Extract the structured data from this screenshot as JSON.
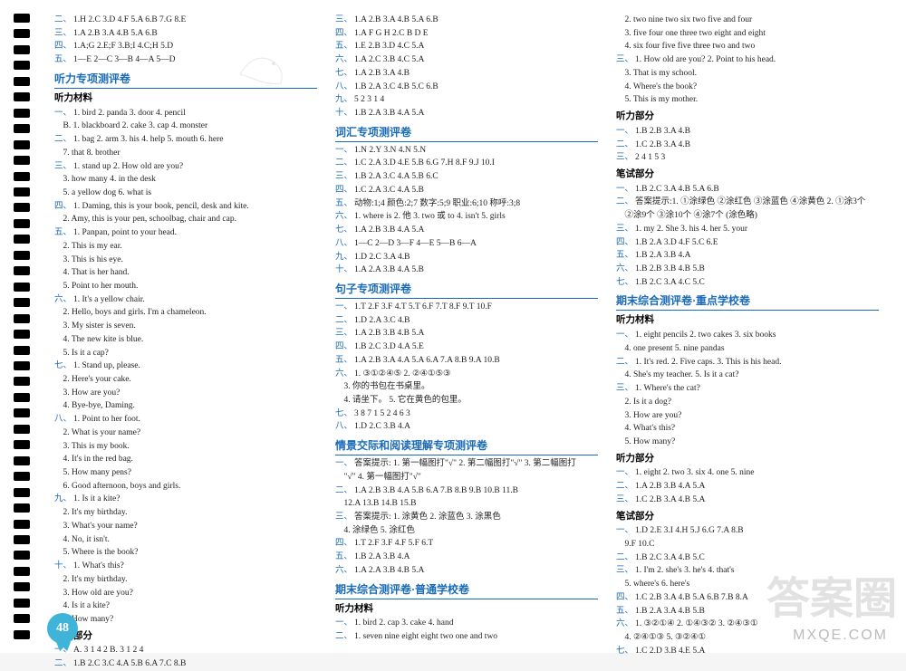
{
  "page_number": "48",
  "watermark_small": "MXQE.COM",
  "watermark_big": "答案圈",
  "columns": [
    {
      "groups": [
        {
          "type": "plain",
          "lines": [
            {
              "n": "二、",
              "t": "1.H  2.C  3.D  4.F  5.A  6.B  7.G  8.E"
            },
            {
              "n": "三、",
              "t": "1.A  2.B  3.A  4.B  5.A  6.B"
            },
            {
              "n": "四、",
              "t": "1.A;G  2.E;F  3.B;I  4.C;H  5.D"
            },
            {
              "n": "五、",
              "t": "1—E  2—C  3—B  4—A  5—D"
            }
          ]
        },
        {
          "type": "title",
          "text": "听力专项测评卷"
        },
        {
          "type": "sub",
          "text": "听力材料"
        },
        {
          "type": "plain",
          "lines": [
            {
              "n": "一、",
              "t": "1. bird  2. panda  3. door  4. pencil"
            },
            {
              "n": "",
              "t": "B. 1. blackboard  2. cake  3. cap  4. monster"
            },
            {
              "n": "二、",
              "t": "1. bag  2. arm  3. his  4. help  5. mouth  6. here"
            },
            {
              "n": "",
              "t": "7. that  8. brother"
            },
            {
              "n": "三、",
              "t": "1. stand up  2. How old are you?"
            },
            {
              "n": "",
              "t": "3. how many   4. in the desk"
            },
            {
              "n": "",
              "t": "5. a yellow dog   6. what is"
            },
            {
              "n": "四、",
              "t": "1. Daming, this is your book, pencil, desk and kite."
            },
            {
              "n": "",
              "t": "2. Amy, this is your pen, schoolbag, chair and cap."
            },
            {
              "n": "五、",
              "t": "1. Panpan, point to your head."
            },
            {
              "n": "",
              "t": "2. This is my ear."
            },
            {
              "n": "",
              "t": "3. This is his eye."
            },
            {
              "n": "",
              "t": "4. That is her hand."
            },
            {
              "n": "",
              "t": "5. Point to her mouth."
            },
            {
              "n": "六、",
              "t": "1. It's a yellow chair."
            },
            {
              "n": "",
              "t": "2. Hello, boys and girls.  I'm a chameleon."
            },
            {
              "n": "",
              "t": "3. My sister is seven."
            },
            {
              "n": "",
              "t": "4. The new kite is blue."
            },
            {
              "n": "",
              "t": "5. Is it a cap?"
            },
            {
              "n": "七、",
              "t": "1. Stand up, please."
            },
            {
              "n": "",
              "t": "2. Here's your cake."
            },
            {
              "n": "",
              "t": "3. How are you?"
            },
            {
              "n": "",
              "t": "4. Bye-bye, Daming."
            },
            {
              "n": "八、",
              "t": "1. Point to her foot."
            },
            {
              "n": "",
              "t": "2. What is your name?"
            },
            {
              "n": "",
              "t": "3. This is my book."
            },
            {
              "n": "",
              "t": "4. It's in the red bag."
            },
            {
              "n": "",
              "t": "5. How many pens?"
            },
            {
              "n": "",
              "t": "6. Good afternoon, boys and girls."
            },
            {
              "n": "九、",
              "t": "1. Is it a kite?"
            },
            {
              "n": "",
              "t": "2. It's my birthday."
            },
            {
              "n": "",
              "t": "3. What's your name?"
            },
            {
              "n": "",
              "t": "4. No, it isn't."
            },
            {
              "n": "",
              "t": "5. Where is the book?"
            },
            {
              "n": "十、",
              "t": "1. What's this?"
            },
            {
              "n": "",
              "t": "2. It's my birthday."
            },
            {
              "n": "",
              "t": "3. How old are you?"
            },
            {
              "n": "",
              "t": "4. Is it a kite?"
            },
            {
              "n": "",
              "t": "5. How many?"
            }
          ]
        },
        {
          "type": "sub",
          "text": "听力部分"
        },
        {
          "type": "plain",
          "lines": [
            {
              "n": "一、",
              "t": "A. 3  1  4  2  B. 3  1  2  4"
            },
            {
              "n": "二、",
              "t": "1.B  2.C  3.C  4.A  5.B  6.A  7.C  8.B"
            }
          ]
        }
      ]
    },
    {
      "groups": [
        {
          "type": "plain",
          "lines": [
            {
              "n": "三、",
              "t": "1.A  2.B  3.A  4.B  5.A  6.B"
            },
            {
              "n": "四、",
              "t": "1.A  F  G  H  2.C  B  D  E"
            },
            {
              "n": "五、",
              "t": "1.E  2.B  3.D  4.C  5.A"
            },
            {
              "n": "六、",
              "t": "1.A  2.C  3.B  4.C  5.A"
            },
            {
              "n": "七、",
              "t": "1.A  2.B  3.A  4.B"
            },
            {
              "n": "八、",
              "t": "1.B  2.A  3.C  4.B  5.C  6.B"
            },
            {
              "n": "九、",
              "t": "5  2  3  1  4"
            },
            {
              "n": "十、",
              "t": "1.B  2.A  3.B  4.A  5.A"
            }
          ]
        },
        {
          "type": "title",
          "text": "词汇专项测评卷"
        },
        {
          "type": "plain",
          "lines": [
            {
              "n": "一、",
              "t": "1.N  2.Y  3.N  4.N  5.N"
            },
            {
              "n": "二、",
              "t": "1.C  2.A  3.D  4.E  5.B  6.G  7.H  8.F  9.J  10.I"
            },
            {
              "n": "三、",
              "t": "1.B  2.A  3.C  4.A  5.B  6.C"
            },
            {
              "n": "四、",
              "t": "1.C  2.A  3.C  4.A  5.B"
            },
            {
              "n": "五、",
              "t": "动物:1;4  颜色:2;7  数字:5;9  职业:6;10  称呼:3;8"
            },
            {
              "n": "六、",
              "t": "1. where is   2. 他  3. two 或 to   4. isn't   5. girls"
            },
            {
              "n": "七、",
              "t": "1.A  2.B  3.B  4.A  5.A"
            },
            {
              "n": "八、",
              "t": "1—C  2—D  3—F  4—E  5—B  6—A"
            },
            {
              "n": "九、",
              "t": "1.D  2.C  3.A  4.B"
            },
            {
              "n": "十、",
              "t": "1.A  2.A  3.B  4.A  5.B"
            }
          ]
        },
        {
          "type": "title",
          "text": "句子专项测评卷"
        },
        {
          "type": "plain",
          "lines": [
            {
              "n": "一、",
              "t": "1.T  2.F  3.F  4.T  5.T  6.F  7.T  8.F  9.T  10.F"
            },
            {
              "n": "二、",
              "t": "1.D  2.A  3.C  4.B"
            },
            {
              "n": "三、",
              "t": "1.A  2.B  3.B  4.B  5.A"
            },
            {
              "n": "四、",
              "t": "1.B  2.C  3.D  4.A  5.E"
            },
            {
              "n": "五、",
              "t": "1.A  2.B  3.A  4.A  5.A  6.A  7.A  8.B  9.A  10.B"
            },
            {
              "n": "六、",
              "t": "1. ③①②④⑤   2. ②④①⑤③"
            },
            {
              "n": "",
              "t": "3. 你的书包在书桌里。"
            },
            {
              "n": "",
              "t": "4. 请坐下。   5. 它在黄色的包里。"
            },
            {
              "n": "七、",
              "t": "3  8  7  1  5  2  4  6  3"
            },
            {
              "n": "八、",
              "t": "1.D  2.C  3.B  4.A"
            }
          ]
        },
        {
          "type": "title",
          "text": "情景交际和阅读理解专项测评卷"
        },
        {
          "type": "plain",
          "lines": [
            {
              "n": "一、",
              "t": "答案提示: 1. 第一幅图打\"√\"  2. 第二幅图打\"√\"  3. 第二幅图打"
            },
            {
              "n": "",
              "t": "\"√\"  4. 第一幅图打\"√\""
            },
            {
              "n": "二、",
              "t": "1.A  2.B  3.B  4.A  5.B  6.A  7.B  8.B  9.B  10.B  11.B"
            },
            {
              "n": "",
              "t": "12.A  13.B  14.B  15.B"
            },
            {
              "n": "三、",
              "t": "答案提示: 1. 涂黄色  2. 涂蓝色  3. 涂黑色"
            },
            {
              "n": "",
              "t": "4. 涂绿色   5. 涂红色"
            },
            {
              "n": "四、",
              "t": "1.T  2.F  3.F  4.F  5.F  6.T"
            },
            {
              "n": "五、",
              "t": "1.B  2.A  3.B  4.A"
            },
            {
              "n": "六、",
              "t": "1.A  2.A  3.B  4.B  5.A"
            }
          ]
        },
        {
          "type": "title",
          "text": "期末综合测评卷·普通学校卷"
        },
        {
          "type": "sub",
          "text": "听力材料"
        },
        {
          "type": "plain",
          "lines": [
            {
              "n": "一、",
              "t": "1. bird  2. cap  3. cake  4. hand"
            },
            {
              "n": "二、",
              "t": "1. seven nine eight eight two one and two"
            }
          ]
        }
      ]
    },
    {
      "groups": [
        {
          "type": "plain",
          "lines": [
            {
              "n": "",
              "t": "2. two nine two six two five and four"
            },
            {
              "n": "",
              "t": "3. five four one three two eight and eight"
            },
            {
              "n": "",
              "t": "4. six four five five three two and two"
            },
            {
              "n": "三、",
              "t": "1. How old are you?   2. Point to his head."
            },
            {
              "n": "",
              "t": "3. That is my school."
            },
            {
              "n": "",
              "t": "4. Where's the book?"
            },
            {
              "n": "",
              "t": "5. This is my mother."
            }
          ]
        },
        {
          "type": "sub",
          "text": "听力部分"
        },
        {
          "type": "plain",
          "lines": [
            {
              "n": "一、",
              "t": "1.B  2.B  3.A  4.B"
            },
            {
              "n": "二、",
              "t": "1.C  2.B  3.A  4.B"
            },
            {
              "n": "三、",
              "t": "2  4  1  5  3"
            }
          ]
        },
        {
          "type": "sub",
          "text": "笔试部分"
        },
        {
          "type": "plain",
          "lines": [
            {
              "n": "一、",
              "t": "1.B  2.C  3.A  4.B  5.A  6.B"
            },
            {
              "n": "二、",
              "t": "答案提示:1. ①涂绿色  ②涂红色  ③涂蓝色  ④涂黄色  2. ①涂3个"
            },
            {
              "n": "",
              "t": "②涂9个  ③涂10个  ④涂7个 (涂色略)"
            },
            {
              "n": "三、",
              "t": "1. my  2. She  3. his  4. her  5. your"
            },
            {
              "n": "四、",
              "t": "1.B  2.A  3.D  4.F  5.C  6.E"
            },
            {
              "n": "五、",
              "t": "1.B  2.A  3.B  4.A"
            },
            {
              "n": "六、",
              "t": "1.B  2.B  3.B  4.B  5.B"
            },
            {
              "n": "七、",
              "t": "1.B  2.C  3.A  4.C  5.C"
            }
          ]
        },
        {
          "type": "title",
          "text": "期末综合测评卷·重点学校卷"
        },
        {
          "type": "sub",
          "text": "听力材料"
        },
        {
          "type": "plain",
          "lines": [
            {
              "n": "一、",
              "t": "1. eight pencils  2. two cakes  3. six books"
            },
            {
              "n": "",
              "t": "4. one present   5. nine pandas"
            },
            {
              "n": "二、",
              "t": "1. It's red.  2. Five caps.  3. This is his head."
            },
            {
              "n": "",
              "t": "4. She's my teacher.   5. Is it a cat?"
            },
            {
              "n": "三、",
              "t": "1. Where's the cat?"
            },
            {
              "n": "",
              "t": "2. Is it a dog?"
            },
            {
              "n": "",
              "t": "3. How are you?"
            },
            {
              "n": "",
              "t": "4. What's this?"
            },
            {
              "n": "",
              "t": "5. How many?"
            }
          ]
        },
        {
          "type": "sub",
          "text": "听力部分"
        },
        {
          "type": "plain",
          "lines": [
            {
              "n": "一、",
              "t": "1. eight  2. two  3. six  4. one  5. nine"
            },
            {
              "n": "二、",
              "t": "1.A  2.B  3.B  4.A  5.A"
            },
            {
              "n": "三、",
              "t": "1.C  2.B  3.A  4.B  5.A"
            }
          ]
        },
        {
          "type": "sub",
          "text": "笔试部分"
        },
        {
          "type": "plain",
          "lines": [
            {
              "n": "一、",
              "t": "1.D  2.E  3.I  4.H  5.J  6.G  7.A  8.B"
            },
            {
              "n": "",
              "t": "9.F  10.C"
            },
            {
              "n": "二、",
              "t": "1.B  2.C  3.A  4.B  5.C"
            },
            {
              "n": "三、",
              "t": "1. I'm  2. she's  3. he's  4. that's"
            },
            {
              "n": "",
              "t": "5. where's  6. here's"
            },
            {
              "n": "四、",
              "t": "1.C  2.B  3.A  4.B  5.A  6.B  7.B  8.A"
            },
            {
              "n": "五、",
              "t": "1.B  2.A  3.A  4.B  5.B"
            },
            {
              "n": "六、",
              "t": "1. ③②①④  2. ①④③②  3. ②④③①"
            },
            {
              "n": "",
              "t": "4. ②④①③  5. ③②④①"
            },
            {
              "n": "七、",
              "t": "1.C  2.D  3.B  4.E  5.A"
            }
          ]
        }
      ]
    }
  ],
  "styling": {
    "title_color": "#1a6bb8",
    "text_color": "#222222",
    "badge_color": "#3fb4d8",
    "page_bg": "#ffffff",
    "body_font_size": 9.5,
    "title_font_size": 12,
    "line_height": 1.55,
    "binding_dot_count": 40
  }
}
